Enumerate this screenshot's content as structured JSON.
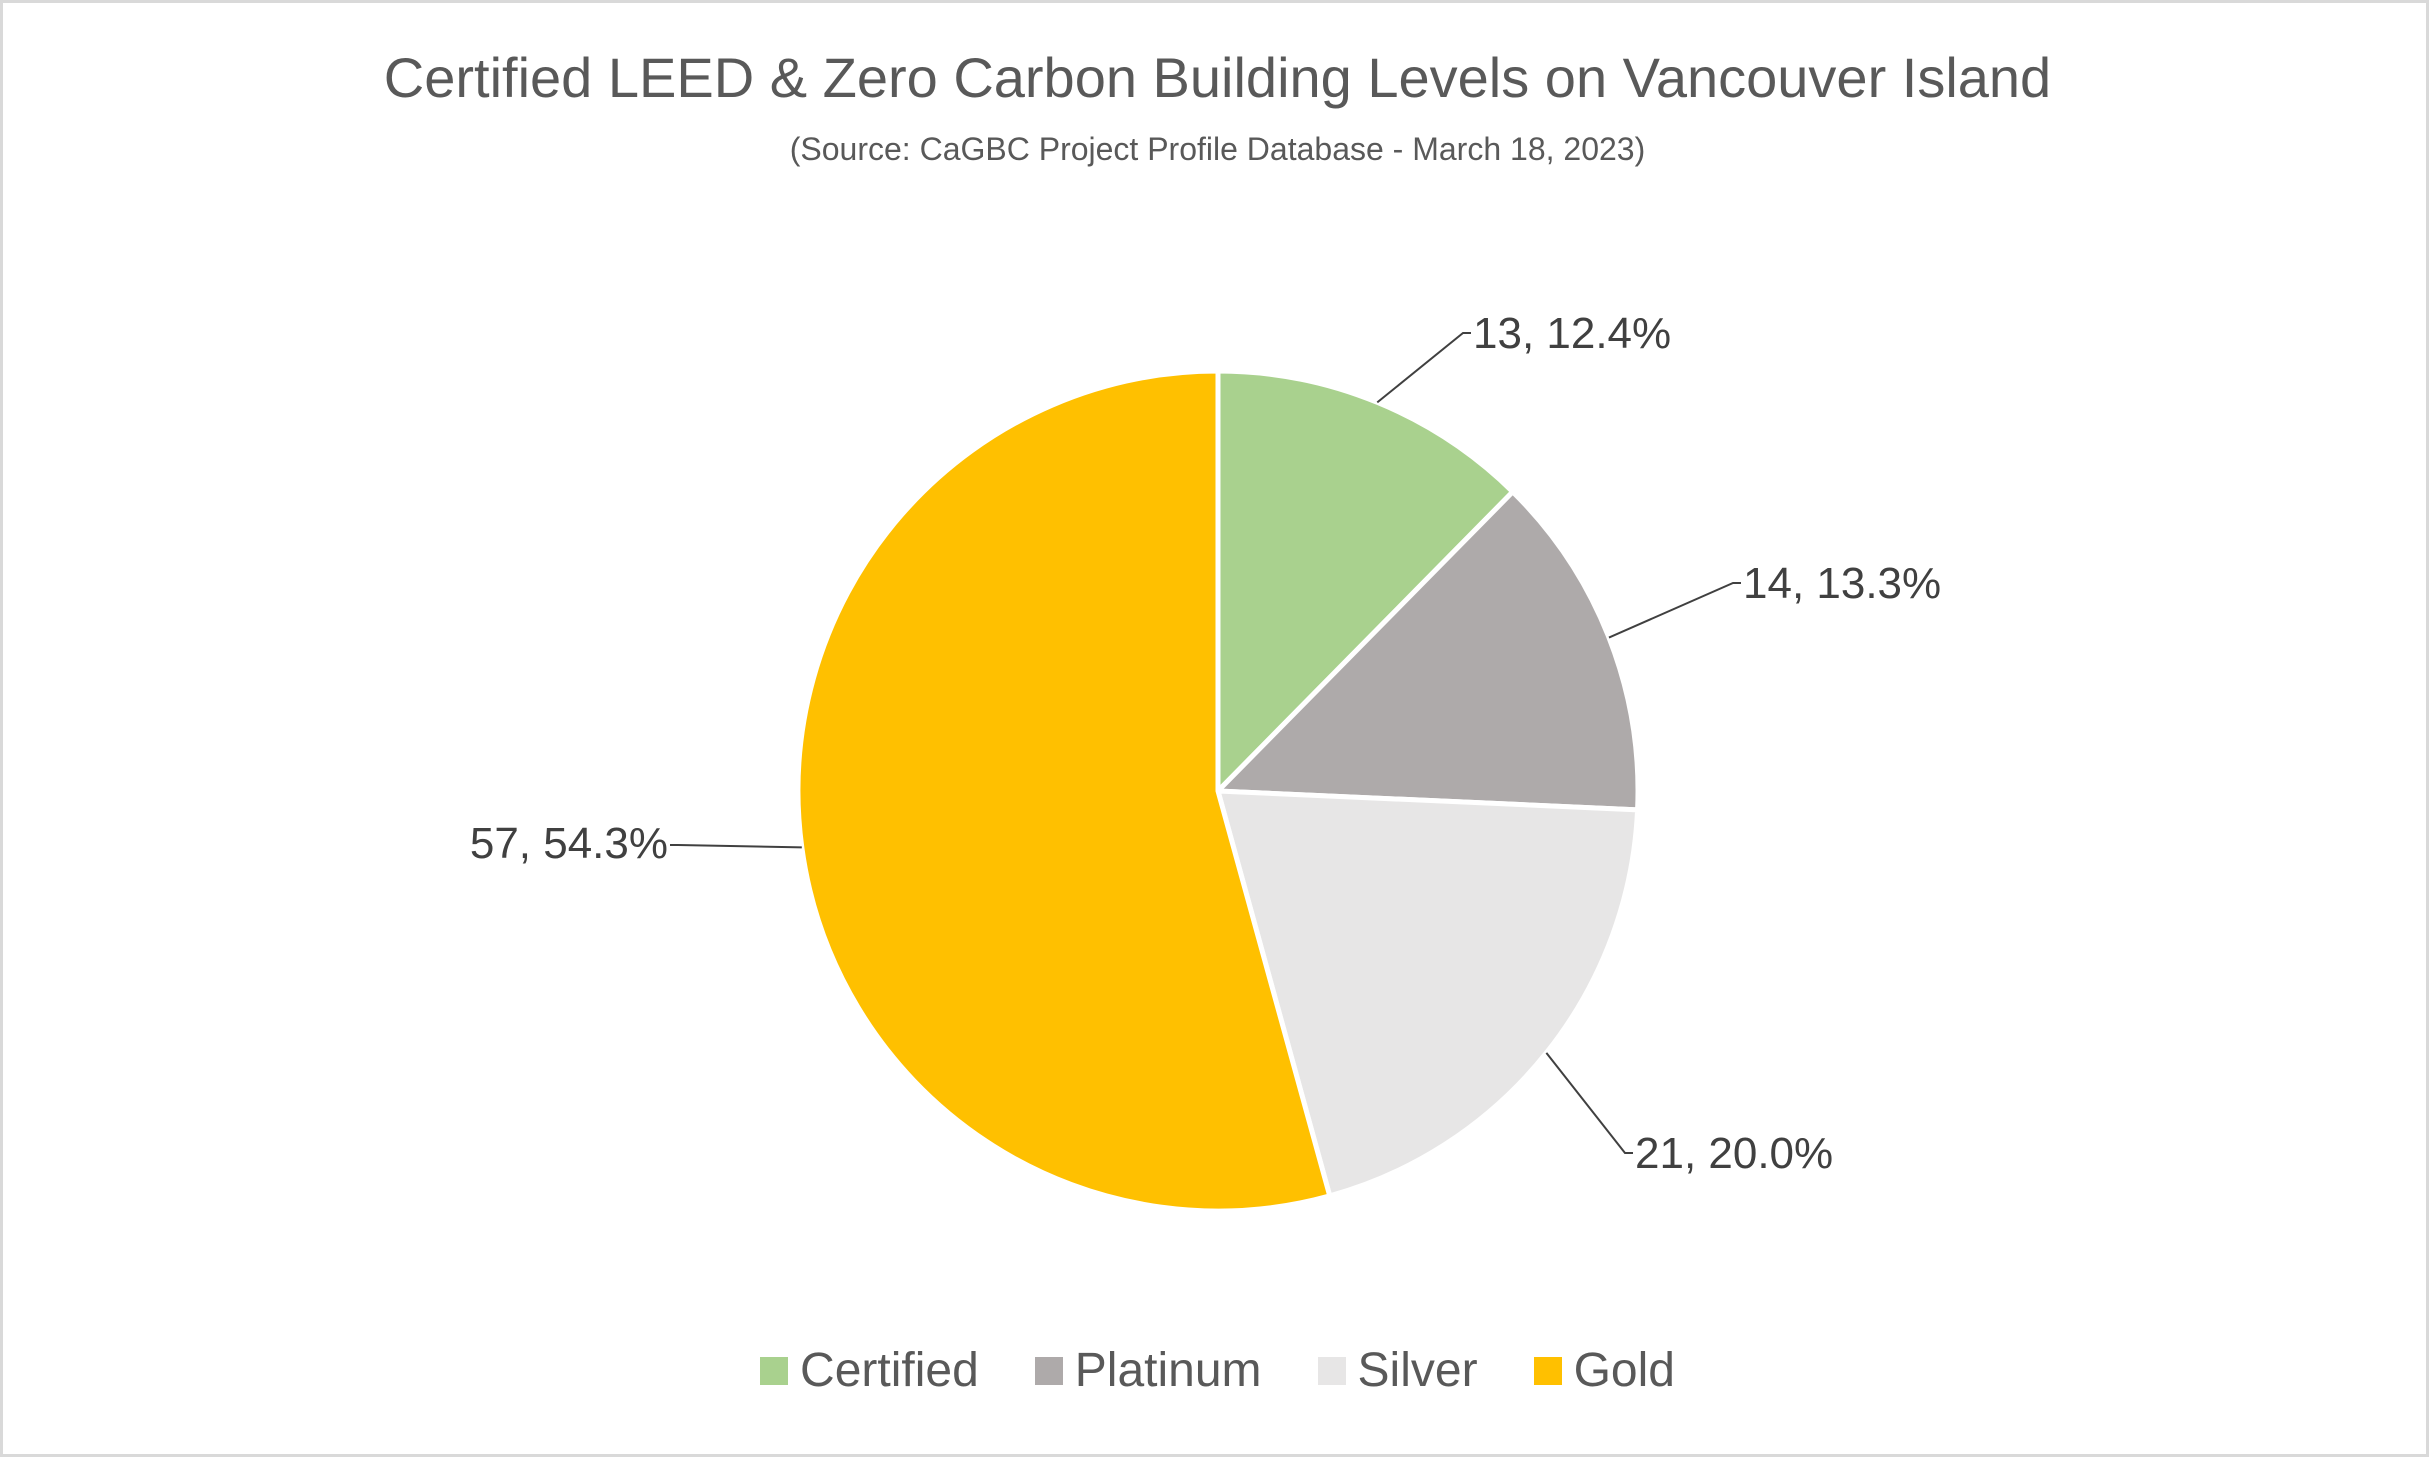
{
  "chart_data": {
    "type": "pie",
    "title": "Certified LEED & Zero Carbon Building Levels on Vancouver Island",
    "subtitle": "(Source: CaGBC Project Profile Database - March 18, 2023)",
    "legend_position": "bottom",
    "slices": [
      {
        "name": "Certified",
        "value": 13,
        "percent": "12.4%",
        "label": "13, 12.4%",
        "color": "#a9d18e"
      },
      {
        "name": "Platinum",
        "value": 14,
        "percent": "13.3%",
        "label": "14, 13.3%",
        "color": "#aeaaaa"
      },
      {
        "name": "Silver",
        "value": 21,
        "percent": "20.0%",
        "label": "21, 20.0%",
        "color": "#e7e6e6"
      },
      {
        "name": "Gold",
        "value": 57,
        "percent": "54.3%",
        "label": "57, 54.3%",
        "color": "#ffc000"
      }
    ]
  }
}
